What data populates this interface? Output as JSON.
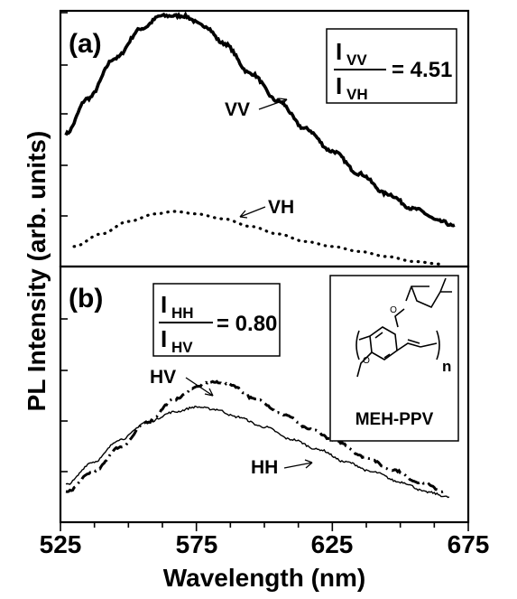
{
  "chart_data": [
    {
      "type": "line",
      "panel_label": "(a)",
      "xlim": [
        525,
        675
      ],
      "ratio": {
        "numerator": "I",
        "numerator_sub": "VV",
        "denominator": "I",
        "denominator_sub": "VH",
        "value": "= 4.51"
      },
      "series": [
        {
          "name": "VV",
          "style": "solid-thick",
          "x": [
            527,
            535,
            545,
            555,
            562,
            570,
            578,
            585,
            595,
            605,
            615,
            625,
            635,
            645,
            655,
            665,
            670
          ],
          "y": [
            0.53,
            0.67,
            0.83,
            0.95,
            1.0,
            1.0,
            0.96,
            0.89,
            0.77,
            0.66,
            0.55,
            0.46,
            0.37,
            0.29,
            0.23,
            0.18,
            0.16
          ]
        },
        {
          "name": "VH",
          "style": "dotted",
          "x": [
            530,
            540,
            550,
            560,
            567,
            575,
            585,
            595,
            605,
            615,
            625,
            635,
            645,
            655,
            665
          ],
          "y": [
            0.08,
            0.13,
            0.18,
            0.21,
            0.22,
            0.21,
            0.19,
            0.16,
            0.13,
            0.1,
            0.08,
            0.06,
            0.04,
            0.02,
            0.01
          ]
        }
      ],
      "annotations": [
        "VV",
        "VH"
      ]
    },
    {
      "type": "line",
      "panel_label": "(b)",
      "xlim": [
        525,
        675
      ],
      "ratio": {
        "numerator": "I",
        "numerator_sub": "HH",
        "denominator": "I",
        "denominator_sub": "HV",
        "value": "= 0.80"
      },
      "series": [
        {
          "name": "HV",
          "style": "dash-dot",
          "x": [
            527,
            537,
            547,
            557,
            567,
            575,
            580,
            587,
            597,
            607,
            617,
            627,
            637,
            647,
            657,
            667
          ],
          "y": [
            0.12,
            0.2,
            0.3,
            0.4,
            0.49,
            0.54,
            0.56,
            0.55,
            0.49,
            0.43,
            0.37,
            0.32,
            0.26,
            0.21,
            0.16,
            0.12
          ]
        },
        {
          "name": "HH",
          "style": "solid-thin",
          "x": [
            527,
            537,
            547,
            557,
            567,
            575,
            582,
            590,
            600,
            610,
            620,
            630,
            640,
            650,
            660,
            668
          ],
          "y": [
            0.15,
            0.24,
            0.33,
            0.4,
            0.44,
            0.46,
            0.45,
            0.42,
            0.38,
            0.33,
            0.29,
            0.24,
            0.2,
            0.16,
            0.12,
            0.1
          ]
        }
      ],
      "annotations": [
        "HV",
        "HH"
      ],
      "inset": {
        "label": "MEH-PPV",
        "subscript": "n"
      }
    }
  ],
  "axes": {
    "xlabel": "Wavelength (nm)",
    "ylabel": "PL Intensity (arb. units)",
    "xticks": [
      "525",
      "575",
      "625",
      "675"
    ]
  }
}
